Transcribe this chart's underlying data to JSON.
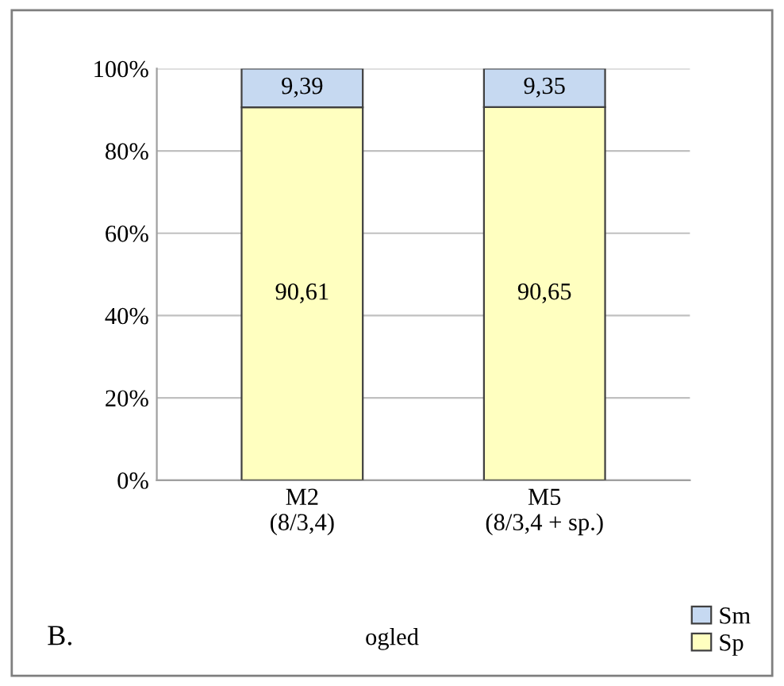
{
  "chart_data": {
    "type": "bar",
    "stacked": true,
    "xlabel": "ogled",
    "categories": [
      "M2\n(8/3,4)",
      "M5\n(8/3,4 + sp.)"
    ],
    "series": [
      {
        "name": "Sp",
        "color": "#ffffc0",
        "values": [
          90.61,
          90.65
        ],
        "value_labels": [
          "90,61",
          "90,65"
        ]
      },
      {
        "name": "Sm",
        "color": "#c6d9f1",
        "values": [
          9.39,
          9.35
        ],
        "value_labels": [
          "9,39",
          "9,35"
        ]
      }
    ],
    "ylim": [
      0,
      100
    ],
    "yticks": [
      {
        "value": 0,
        "label": "0%"
      },
      {
        "value": 20,
        "label": "20%"
      },
      {
        "value": 40,
        "label": "40%"
      },
      {
        "value": 60,
        "label": "60%"
      },
      {
        "value": 80,
        "label": "80%"
      },
      {
        "value": 100,
        "label": "100%"
      }
    ],
    "grid": "y",
    "legend": "bottom right",
    "annotations": [
      "B."
    ]
  }
}
